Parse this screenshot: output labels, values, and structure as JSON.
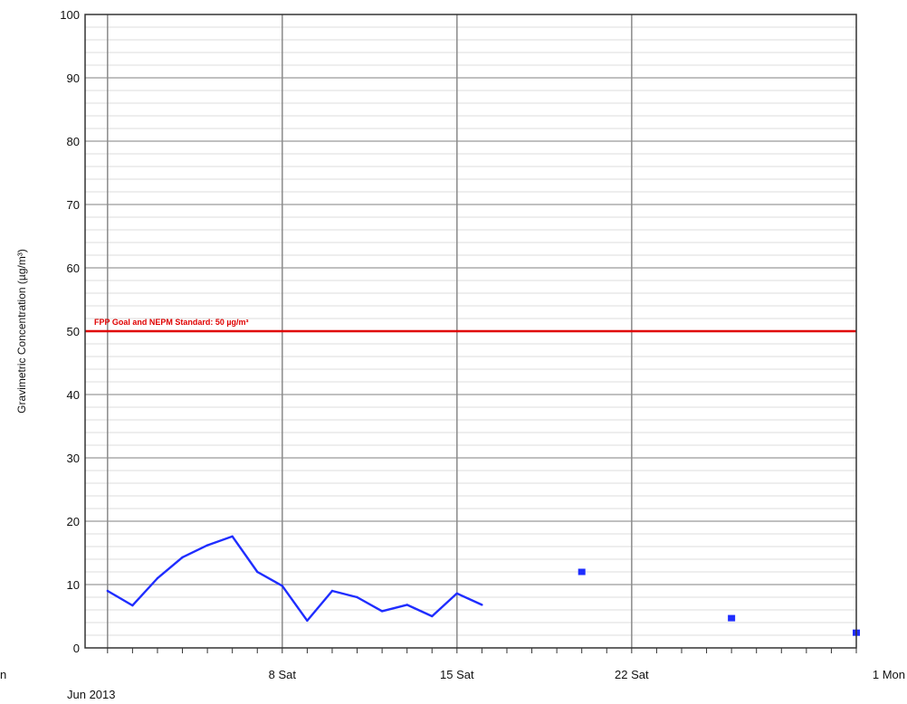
{
  "chart_data": {
    "type": "line",
    "ylabel": "Gravimetric Concentration (µg/m³)",
    "ylim": [
      0,
      100
    ],
    "y_ticks": [
      0,
      10,
      20,
      30,
      40,
      50,
      60,
      70,
      80,
      90,
      100
    ],
    "xlim": [
      "2013-06-01",
      "2013-07-01"
    ],
    "x_ticks": [
      {
        "date": "2013-06-01",
        "label": "n"
      },
      {
        "date": "2013-06-08",
        "label": "8 Sat"
      },
      {
        "date": "2013-06-15",
        "label": "15 Sat"
      },
      {
        "date": "2013-06-22",
        "label": "22 Sat"
      },
      {
        "date": "2013-07-01",
        "label": "1 Mon"
      }
    ],
    "x_sublabel": "Jun 2013",
    "grid": true,
    "reference_line": {
      "value": 50,
      "label": "FPP Goal and NEPM Standard: 50 µg/m³",
      "color": "#e00000"
    },
    "series": [
      {
        "color": "#1f2dff",
        "points": [
          {
            "x": "2013-06-01",
            "y": 9
          },
          {
            "x": "2013-06-02",
            "y": 6.7
          },
          {
            "x": "2013-06-03",
            "y": 11
          },
          {
            "x": "2013-06-04",
            "y": 14.3
          },
          {
            "x": "2013-06-05",
            "y": 16.2
          },
          {
            "x": "2013-06-06",
            "y": 17.6
          },
          {
            "x": "2013-06-07",
            "y": 12
          },
          {
            "x": "2013-06-08",
            "y": 9.8
          },
          {
            "x": "2013-06-09",
            "y": 4.3
          },
          {
            "x": "2013-06-10",
            "y": 9
          },
          {
            "x": "2013-06-11",
            "y": 8
          },
          {
            "x": "2013-06-12",
            "y": 5.8
          },
          {
            "x": "2013-06-13",
            "y": 6.8
          },
          {
            "x": "2013-06-14",
            "y": 5
          },
          {
            "x": "2013-06-15",
            "y": 8.6
          },
          {
            "x": "2013-06-16",
            "y": 6.8
          }
        ]
      },
      {
        "color": "#1f2dff",
        "marker": "square",
        "points": [
          {
            "x": "2013-06-20",
            "y": 12
          },
          {
            "x": "2013-06-26",
            "y": 4.7
          },
          {
            "x": "2013-07-01",
            "y": 2.4
          }
        ]
      }
    ]
  }
}
